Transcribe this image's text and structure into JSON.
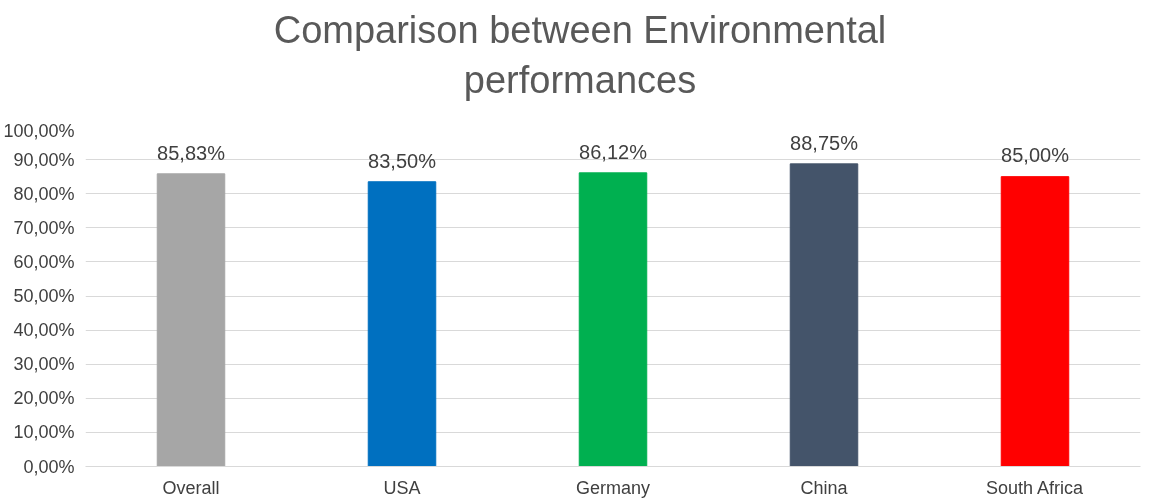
{
  "chart_data": {
    "type": "bar",
    "title": "Comparison between Environmental performances",
    "categories": [
      "Overall",
      "USA",
      "Germany",
      "China",
      "South Africa"
    ],
    "values": [
      85.83,
      83.5,
      86.12,
      88.75,
      85.0
    ],
    "colors": [
      "#a6a6a6",
      "#0070c0",
      "#00b050",
      "#44546a",
      "#ff0000"
    ],
    "value_labels": [
      "85,83%",
      "83,50%",
      "86,12%",
      "88,75%",
      "85,00%"
    ],
    "ylim": [
      0,
      100
    ],
    "yticks": [
      {
        "value": 0,
        "label": "0,00%"
      },
      {
        "value": 10,
        "label": "10,00%"
      },
      {
        "value": 20,
        "label": "20,00%"
      },
      {
        "value": 30,
        "label": "30,00%"
      },
      {
        "value": 40,
        "label": "40,00%"
      },
      {
        "value": 50,
        "label": "50,00%"
      },
      {
        "value": 60,
        "label": "60,00%"
      },
      {
        "value": 70,
        "label": "70,00%"
      },
      {
        "value": 80,
        "label": "80,00%"
      },
      {
        "value": 90,
        "label": "90,00%"
      },
      {
        "value": 100,
        "label": "100,00%"
      }
    ],
    "grid": "y"
  }
}
